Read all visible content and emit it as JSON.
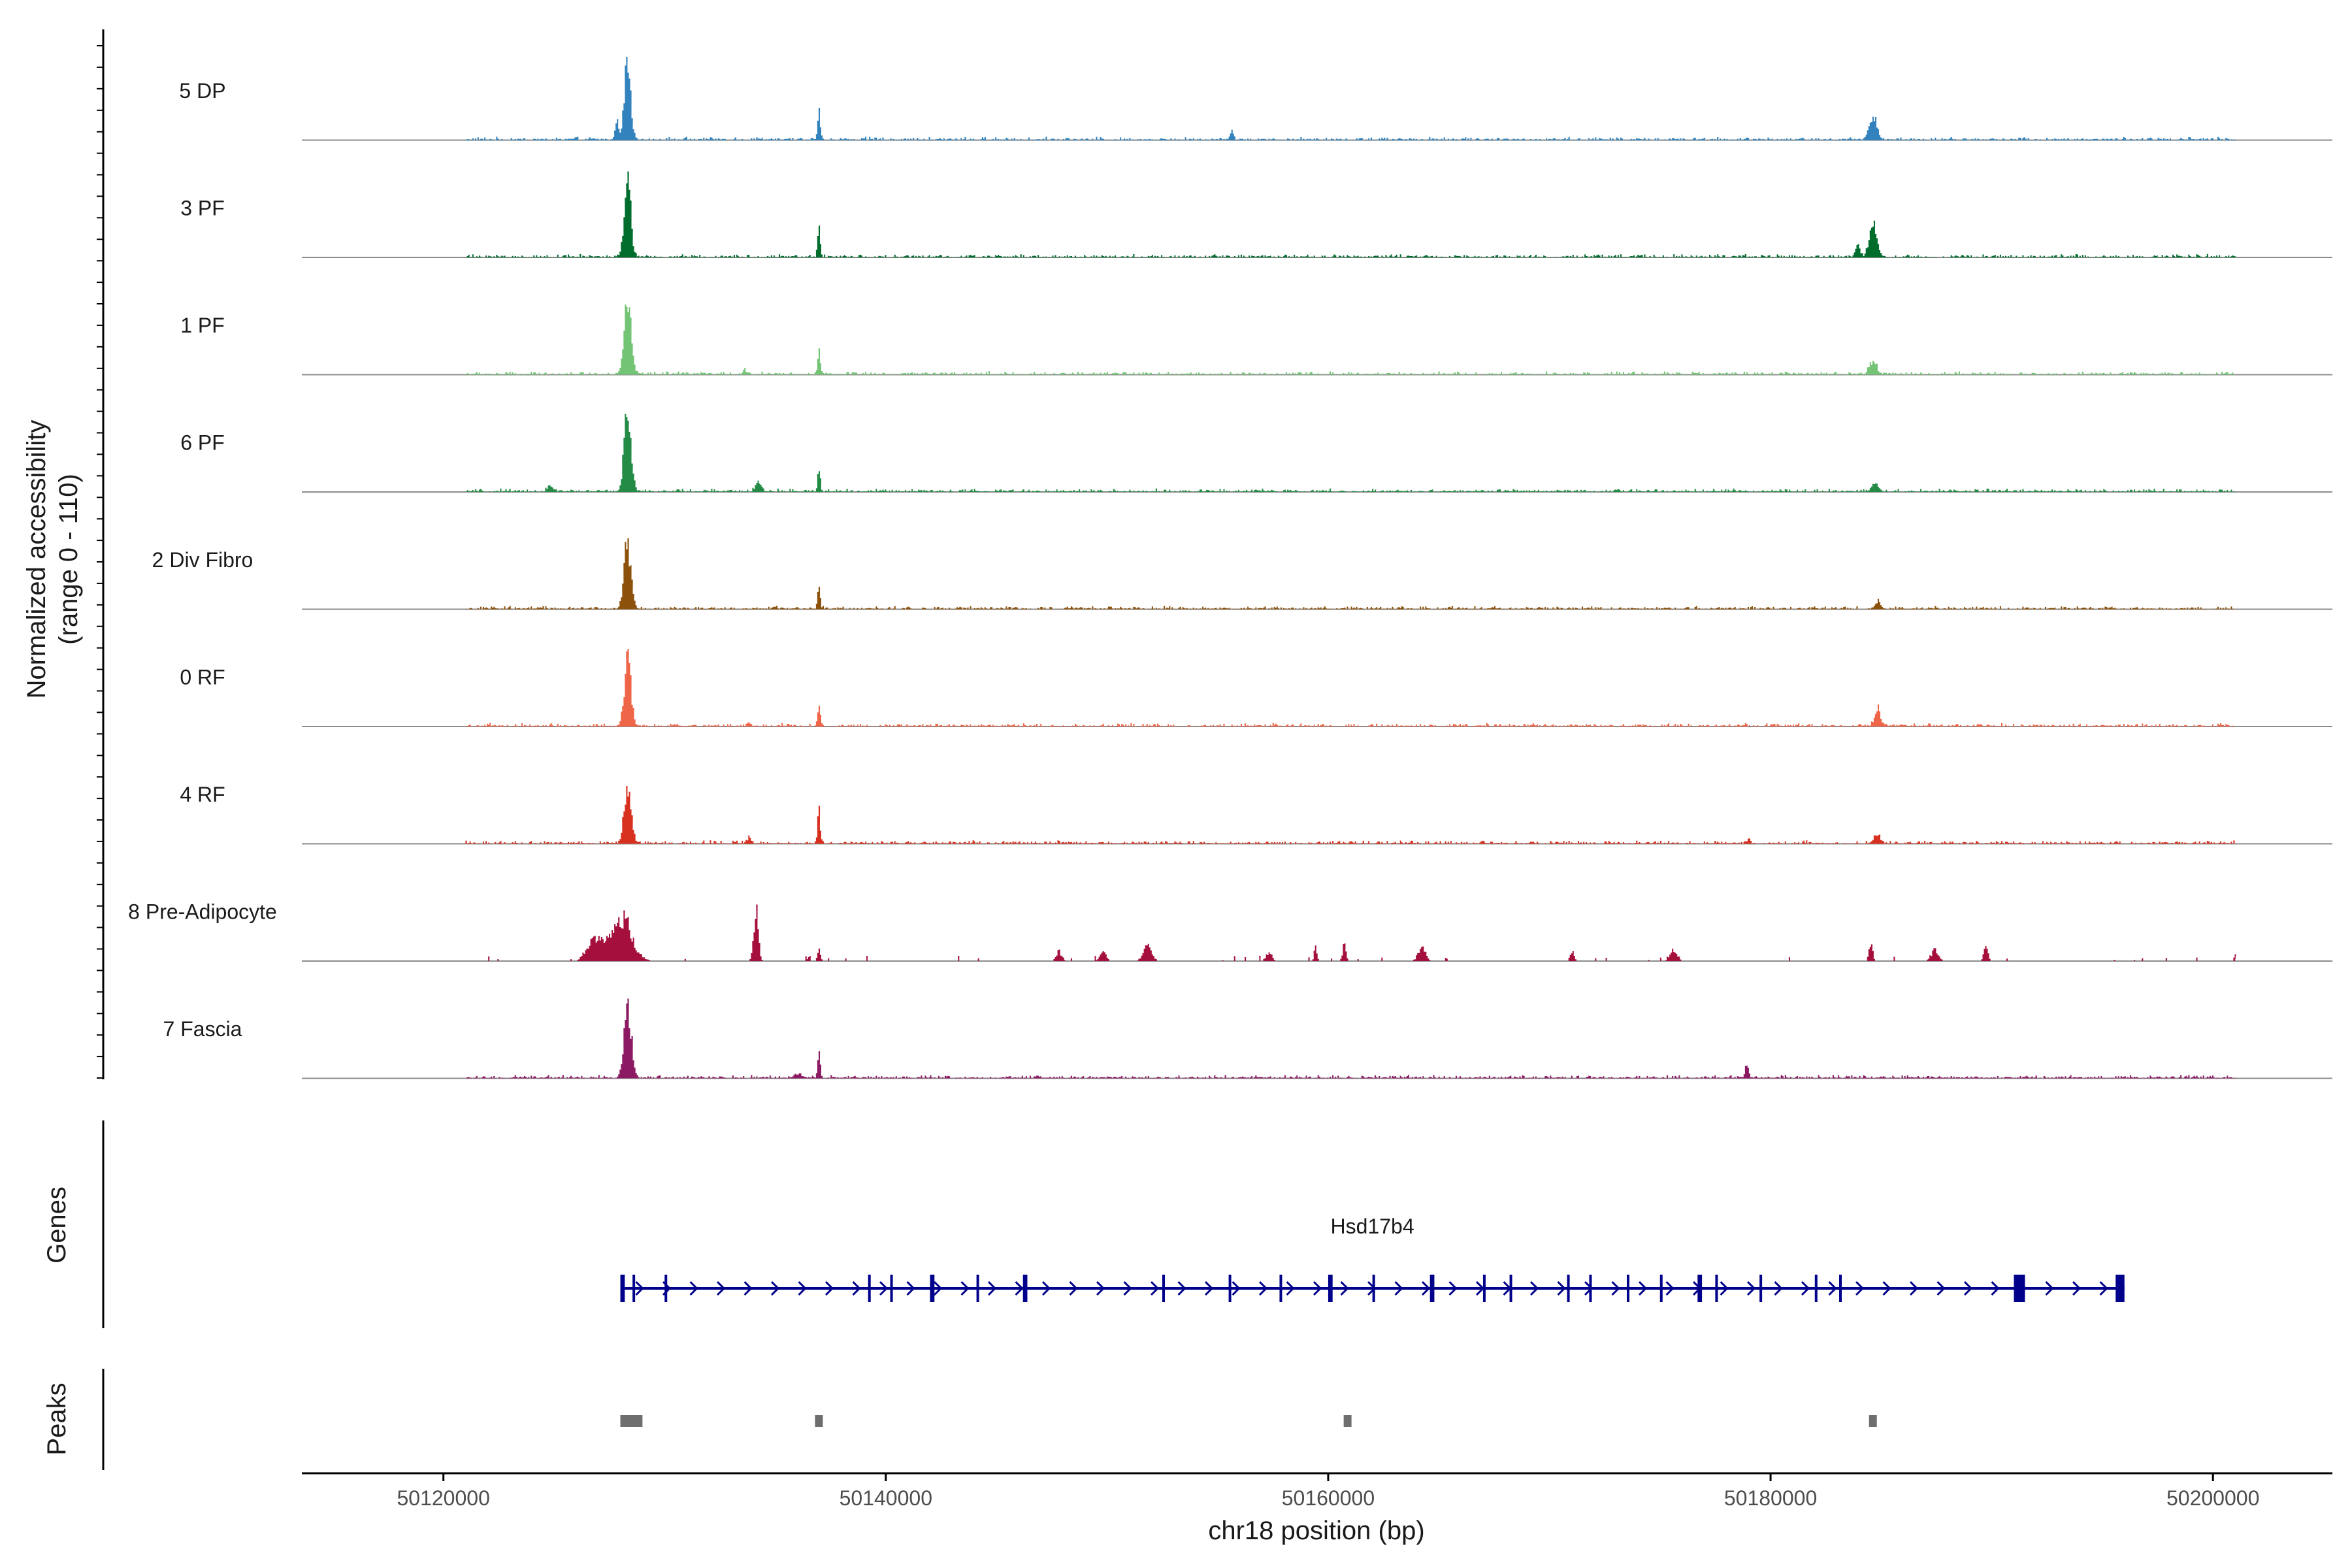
{
  "chart_data": {
    "type": "area",
    "chromosome": "chr18",
    "x_label": "chr18 position (bp)",
    "y_label_line1": "Normalized accessibility",
    "y_label_line2": "(range 0 - 110)",
    "y_range": [
      0,
      110
    ],
    "xlim": [
      50113600,
      50205400
    ],
    "x_ticks": [
      50120000,
      50140000,
      50160000,
      50180000,
      50200000
    ],
    "x_tick_labels": [
      "50120000",
      "50140000",
      "50160000",
      "50180000",
      "50200000"
    ],
    "data_range": [
      50121000,
      50201000
    ],
    "background_level": 4,
    "tracks": [
      {
        "name": "5 DP",
        "color": "#3182bd",
        "peaks": [
          [
            50128300,
            1.0,
            220
          ],
          [
            50136950,
            0.33,
            90
          ],
          [
            50184600,
            0.3,
            260
          ],
          [
            50127800,
            0.25,
            120
          ],
          [
            50155600,
            0.1,
            120
          ]
        ]
      },
      {
        "name": "3 PF",
        "color": "#006d2c",
        "peaks": [
          [
            50128300,
            1.0,
            220
          ],
          [
            50136950,
            0.42,
            90
          ],
          [
            50184600,
            0.4,
            260
          ],
          [
            50183900,
            0.15,
            150
          ]
        ]
      },
      {
        "name": "1 PF",
        "color": "#74c476",
        "peaks": [
          [
            50128300,
            1.0,
            240
          ],
          [
            50136950,
            0.28,
            90
          ],
          [
            50184600,
            0.18,
            240
          ],
          [
            50133600,
            0.05,
            140
          ]
        ]
      },
      {
        "name": "6 PF",
        "color": "#238b45",
        "peaks": [
          [
            50128300,
            1.0,
            240
          ],
          [
            50136950,
            0.35,
            90
          ],
          [
            50134200,
            0.15,
            180
          ],
          [
            50184700,
            0.1,
            260
          ],
          [
            50124800,
            0.06,
            200
          ]
        ]
      },
      {
        "name": "2 Div Fibro",
        "color": "#8c510a",
        "peaks": [
          [
            50128300,
            0.85,
            240
          ],
          [
            50136950,
            0.28,
            90
          ],
          [
            50184800,
            0.1,
            160
          ]
        ]
      },
      {
        "name": "0 RF",
        "color": "#ef6548",
        "peaks": [
          [
            50128300,
            0.8,
            240
          ],
          [
            50136950,
            0.25,
            90
          ],
          [
            50184800,
            0.25,
            200
          ],
          [
            50133800,
            0.05,
            120
          ]
        ]
      },
      {
        "name": "4 RF",
        "color": "#d7301f",
        "peaks": [
          [
            50128300,
            0.75,
            240
          ],
          [
            50136950,
            0.45,
            90
          ],
          [
            50184800,
            0.12,
            200
          ],
          [
            50133800,
            0.08,
            120
          ],
          [
            50179000,
            0.05,
            100
          ]
        ]
      },
      {
        "name": "8 Pre-Adipocyte",
        "color": "#a50f3c",
        "peaks": [
          [
            50134100,
            0.7,
            160
          ],
          [
            50128000,
            0.6,
            700
          ],
          [
            50126800,
            0.3,
            500
          ],
          [
            50136950,
            0.2,
            100
          ],
          [
            50147800,
            0.12,
            200
          ],
          [
            50149800,
            0.15,
            200
          ],
          [
            50151800,
            0.18,
            300
          ],
          [
            50157300,
            0.12,
            200
          ],
          [
            50159400,
            0.18,
            100
          ],
          [
            50160700,
            0.2,
            120
          ],
          [
            50164200,
            0.18,
            250
          ],
          [
            50171000,
            0.12,
            150
          ],
          [
            50175600,
            0.15,
            250
          ],
          [
            50184500,
            0.25,
            120
          ],
          [
            50187400,
            0.15,
            250
          ],
          [
            50189700,
            0.18,
            150
          ],
          [
            50201000,
            0.08,
            100
          ]
        ]
      },
      {
        "name": "7 Fascia",
        "color": "#8b1a62",
        "peaks": [
          [
            50128300,
            0.95,
            240
          ],
          [
            50136950,
            0.4,
            90
          ],
          [
            50178900,
            0.15,
            120
          ],
          [
            50136000,
            0.05,
            300
          ]
        ]
      }
    ],
    "gene": {
      "name": "Hsd17b4",
      "color": "#00008b",
      "start": 50128000,
      "end": 50196000,
      "strand": "+",
      "exons": [
        [
          50128000,
          50128200
        ],
        [
          50128550,
          50128650
        ],
        [
          50130000,
          50130100
        ],
        [
          50139200,
          50139300
        ],
        [
          50140200,
          50140300
        ],
        [
          50142000,
          50142200
        ],
        [
          50144100,
          50144200
        ],
        [
          50146200,
          50146400
        ],
        [
          50152500,
          50152600
        ],
        [
          50155500,
          50155600
        ],
        [
          50157800,
          50157900
        ],
        [
          50160000,
          50160200
        ],
        [
          50162000,
          50162100
        ],
        [
          50164600,
          50164800
        ],
        [
          50167000,
          50167100
        ],
        [
          50168200,
          50168300
        ],
        [
          50170800,
          50170900
        ],
        [
          50171800,
          50171900
        ],
        [
          50173500,
          50173600
        ],
        [
          50175000,
          50175100
        ],
        [
          50176700,
          50176900
        ],
        [
          50177500,
          50177600
        ],
        [
          50179500,
          50179600
        ],
        [
          50182000,
          50182100
        ],
        [
          50183100,
          50183200
        ],
        [
          50191000,
          50191500
        ],
        [
          50195600,
          50196000
        ]
      ]
    },
    "peak_regions": [
      [
        50128000,
        50129000
      ],
      [
        50136800,
        50137150
      ],
      [
        50160700,
        50161050
      ],
      [
        50184450,
        50184800
      ]
    ]
  },
  "panels": {
    "genes_label": "Genes",
    "peaks_label": "Peaks"
  },
  "colors": {
    "baseline": "#8c8c8c",
    "axis": "#000000",
    "peak_region": "#6e6e6e",
    "tick_text": "#4d4d4d"
  }
}
